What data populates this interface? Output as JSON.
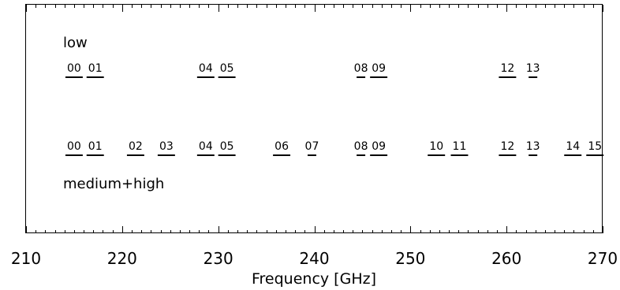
{
  "chart_data": {
    "type": "interval-diagram",
    "xlabel": "Frequency [GHz]",
    "xlim": [
      210,
      270
    ],
    "major_ticks": [
      210,
      220,
      230,
      240,
      250,
      260,
      270
    ],
    "minor_tick_step": 1,
    "groups": [
      {
        "name": "low",
        "segments": [
          {
            "label": "00",
            "start": 214.1,
            "end": 215.9
          },
          {
            "label": "01",
            "start": 216.3,
            "end": 218.1
          },
          {
            "label": "04",
            "start": 227.8,
            "end": 229.6
          },
          {
            "label": "05",
            "start": 230.0,
            "end": 231.8
          },
          {
            "label": "08",
            "start": 244.4,
            "end": 245.3
          },
          {
            "label": "09",
            "start": 245.8,
            "end": 247.6
          },
          {
            "label": "12",
            "start": 259.2,
            "end": 261.0
          },
          {
            "label": "13",
            "start": 262.3,
            "end": 263.2
          }
        ]
      },
      {
        "name": "medium+high",
        "segments": [
          {
            "label": "00",
            "start": 214.1,
            "end": 215.9
          },
          {
            "label": "01",
            "start": 216.3,
            "end": 218.1
          },
          {
            "label": "02",
            "start": 220.5,
            "end": 222.3
          },
          {
            "label": "03",
            "start": 223.7,
            "end": 225.5
          },
          {
            "label": "04",
            "start": 227.8,
            "end": 229.6
          },
          {
            "label": "05",
            "start": 230.0,
            "end": 231.8
          },
          {
            "label": "06",
            "start": 235.7,
            "end": 237.5
          },
          {
            "label": "07",
            "start": 239.3,
            "end": 240.2
          },
          {
            "label": "08",
            "start": 244.4,
            "end": 245.3
          },
          {
            "label": "09",
            "start": 245.8,
            "end": 247.6
          },
          {
            "label": "10",
            "start": 251.8,
            "end": 253.6
          },
          {
            "label": "11",
            "start": 254.2,
            "end": 256.0
          },
          {
            "label": "12",
            "start": 259.2,
            "end": 261.0
          },
          {
            "label": "13",
            "start": 262.3,
            "end": 263.2
          },
          {
            "label": "14",
            "start": 266.0,
            "end": 267.8
          },
          {
            "label": "15",
            "start": 268.3,
            "end": 270.1
          }
        ]
      }
    ]
  }
}
